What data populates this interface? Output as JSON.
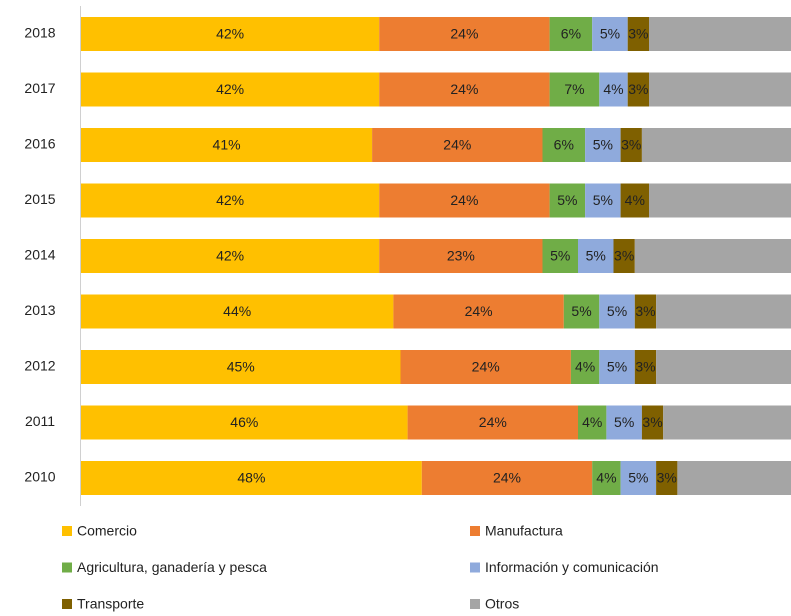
{
  "chart_data": {
    "type": "stacked_bar_horizontal",
    "categories": [
      "2018",
      "2017",
      "2016",
      "2015",
      "2014",
      "2013",
      "2012",
      "2011",
      "2010"
    ],
    "xlim": [
      0,
      100
    ],
    "series": [
      {
        "name": "Comercio",
        "color": "#FFC000",
        "values": [
          42,
          42,
          41,
          42,
          42,
          44,
          45,
          46,
          48
        ],
        "value_labels": [
          "42%",
          "42%",
          "41%",
          "42%",
          "42%",
          "44%",
          "45%",
          "46%",
          "48%"
        ]
      },
      {
        "name": "Manufactura",
        "color": "#ED7D31",
        "values": [
          24,
          24,
          24,
          24,
          23,
          24,
          24,
          24,
          24
        ],
        "value_labels": [
          "24%",
          "24%",
          "24%",
          "24%",
          "23%",
          "24%",
          "24%",
          "24%",
          "24%"
        ]
      },
      {
        "name": "Agricultura, ganadería y pesca",
        "color": "#70AD47",
        "values": [
          6,
          7,
          6,
          5,
          5,
          5,
          4,
          4,
          4
        ],
        "value_labels": [
          "6%",
          "7%",
          "6%",
          "5%",
          "5%",
          "5%",
          "4%",
          "4%",
          "4%"
        ]
      },
      {
        "name": "Información y comunicación",
        "color": "#8FAADC",
        "values": [
          5,
          4,
          5,
          5,
          5,
          5,
          5,
          5,
          5
        ],
        "value_labels": [
          "5%",
          "4%",
          "5%",
          "5%",
          "5%",
          "5%",
          "5%",
          "5%",
          "5%"
        ]
      },
      {
        "name": "Transporte",
        "color": "#7F6000",
        "values": [
          3,
          3,
          3,
          4,
          3,
          3,
          3,
          3,
          3
        ],
        "value_labels": [
          "3%",
          "3%",
          "3%",
          "4%",
          "3%",
          "3%",
          "3%",
          "3%",
          "3%"
        ]
      },
      {
        "name": "Otros",
        "color": "#A5A5A5",
        "values": [
          20,
          20,
          21,
          20,
          22,
          19,
          19,
          18,
          16
        ]
      }
    ],
    "legend": "bottom"
  }
}
